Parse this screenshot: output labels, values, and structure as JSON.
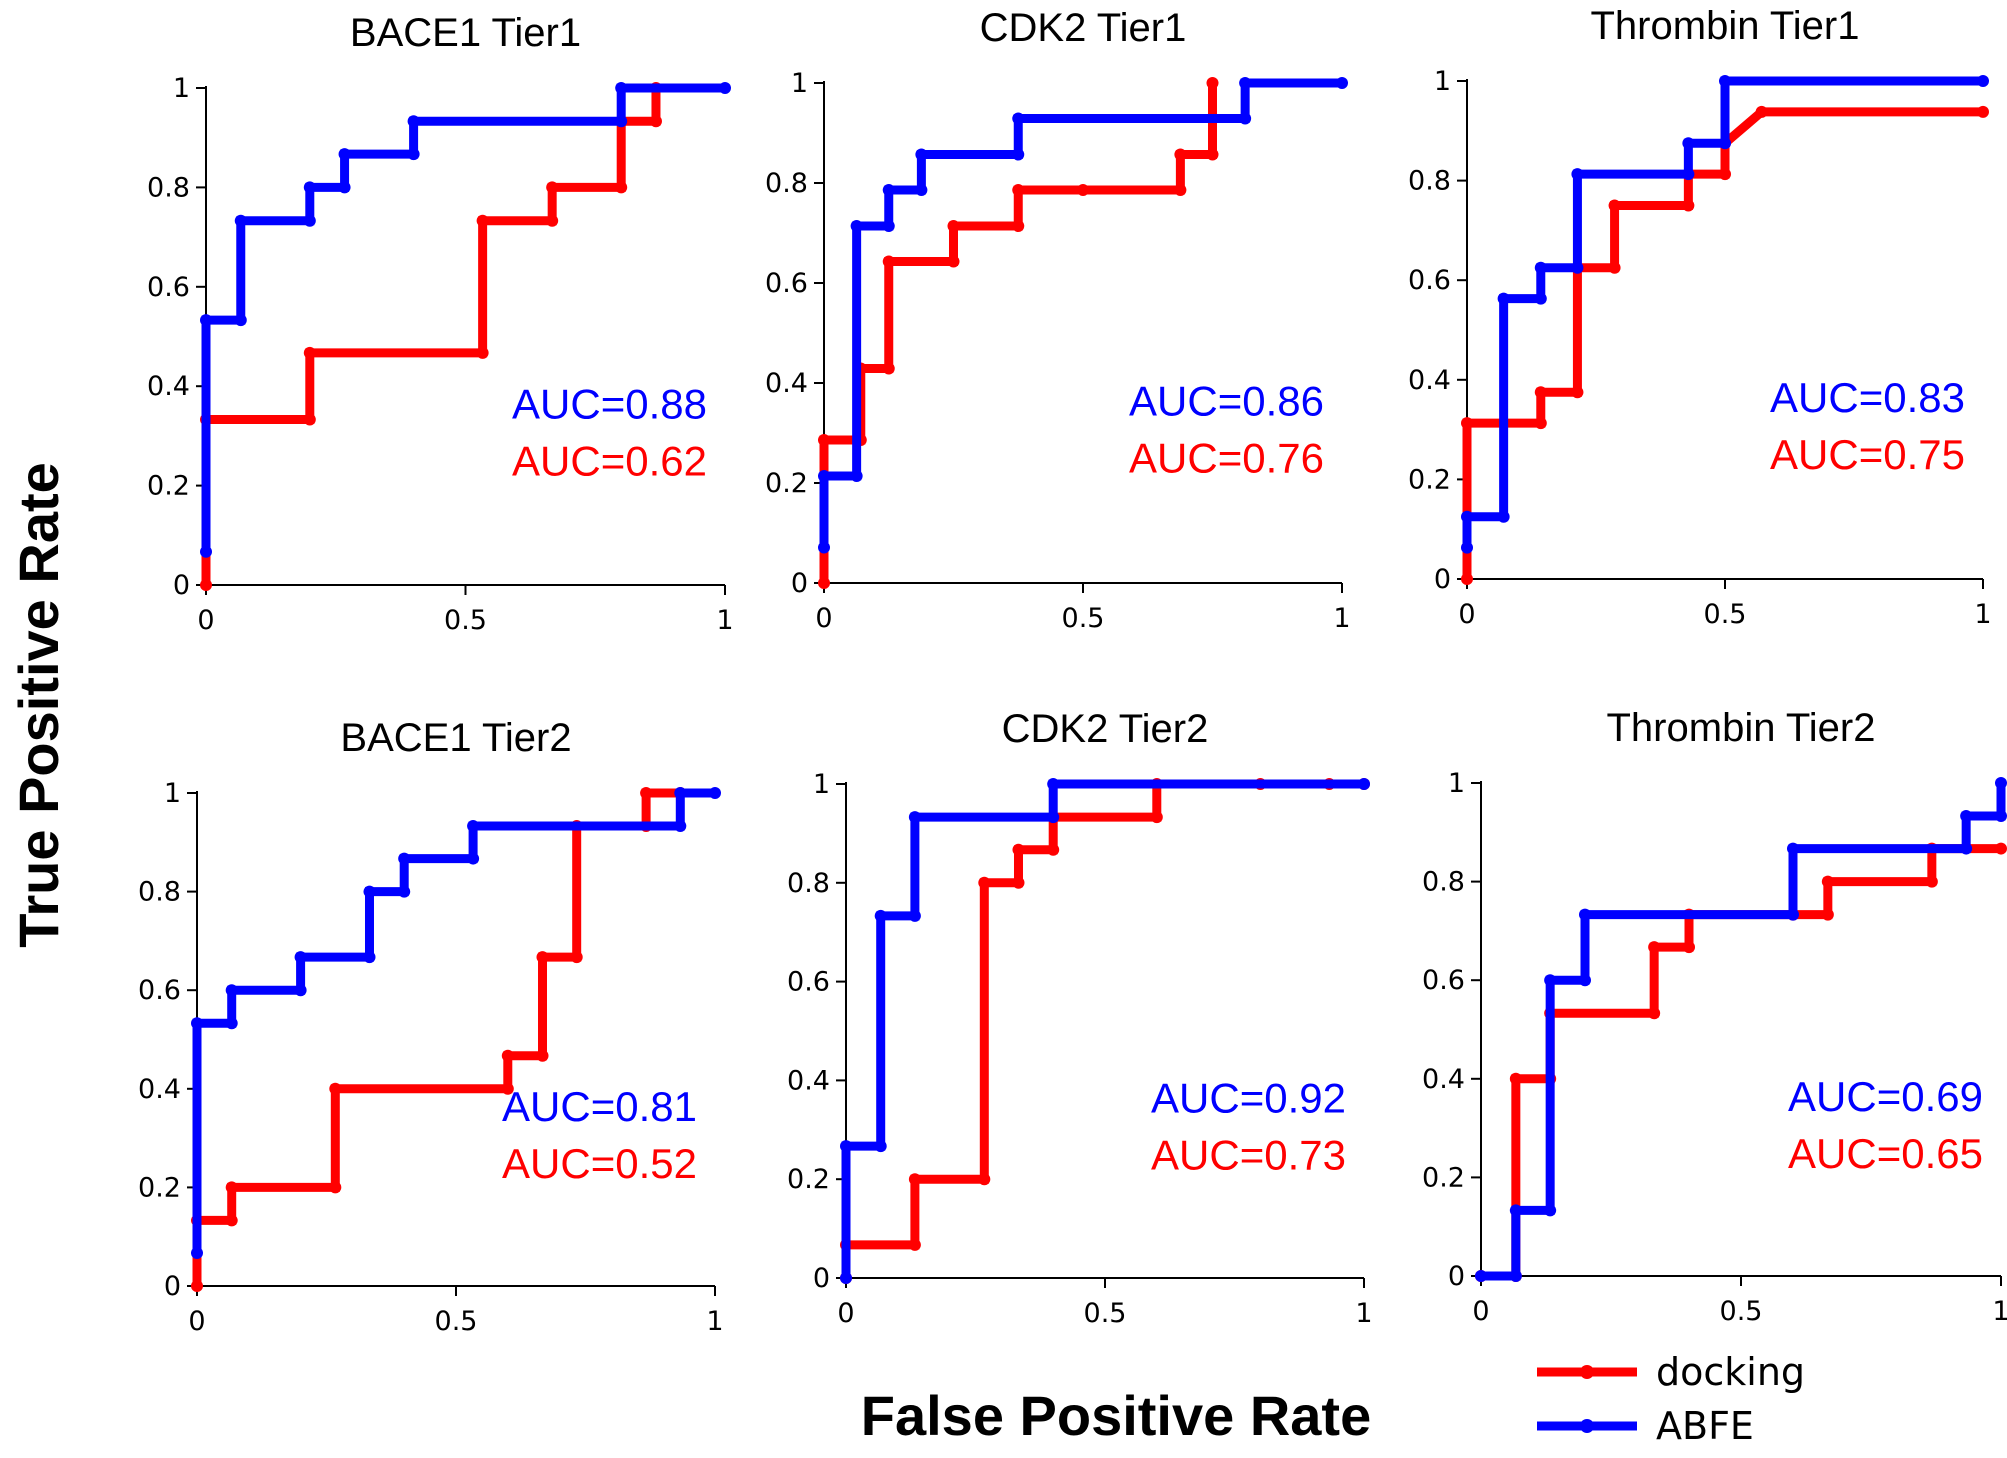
{
  "figure": {
    "ylabel": "True Positive Rate",
    "xlabel": "False Positive Rate",
    "legend": [
      {
        "name": "docking",
        "color": "#ff0000"
      },
      {
        "name": "ABFE",
        "color": "#0000ff"
      }
    ],
    "x_ticks": [
      "0",
      "0.5",
      "1"
    ],
    "y_ticks": [
      "0",
      "0.2",
      "0.4",
      "0.6",
      "0.8",
      "1"
    ]
  },
  "chart_data": [
    {
      "type": "line",
      "title": "BACE1 Tier1",
      "xlim": [
        0,
        1
      ],
      "ylim": [
        0,
        1
      ],
      "series": [
        {
          "name": "docking",
          "color": "#ff0000",
          "auc_label": "AUC=0.62",
          "x": [
            0,
            0,
            0.2,
            0.2,
            0.533,
            0.533,
            0.667,
            0.667,
            0.8,
            0.8,
            0.867,
            0.867
          ],
          "y": [
            0,
            0.333,
            0.333,
            0.467,
            0.467,
            0.733,
            0.733,
            0.8,
            0.8,
            0.933,
            0.933,
            1
          ]
        },
        {
          "name": "ABFE",
          "color": "#0000ff",
          "auc_label": "AUC=0.88",
          "x": [
            0,
            0,
            0.067,
            0.067,
            0.2,
            0.2,
            0.267,
            0.267,
            0.4,
            0.4,
            0.8,
            0.8,
            1
          ],
          "y": [
            0.067,
            0.533,
            0.533,
            0.733,
            0.733,
            0.8,
            0.8,
            0.867,
            0.867,
            0.933,
            0.933,
            1,
            1
          ]
        }
      ]
    },
    {
      "type": "line",
      "title": "CDK2 Tier1",
      "xlim": [
        0,
        1
      ],
      "ylim": [
        0,
        1
      ],
      "series": [
        {
          "name": "docking",
          "color": "#ff0000",
          "auc_label": "AUC=0.76",
          "x": [
            0,
            0,
            0.071,
            0.071,
            0.125,
            0.125,
            0.25,
            0.25,
            0.375,
            0.375,
            0.5,
            0.688,
            0.688,
            0.75,
            0.75
          ],
          "y": [
            0,
            0.286,
            0.286,
            0.429,
            0.429,
            0.643,
            0.643,
            0.714,
            0.714,
            0.786,
            0.786,
            0.786,
            0.857,
            0.857,
            1
          ]
        },
        {
          "name": "ABFE",
          "color": "#0000ff",
          "auc_label": "AUC=0.86",
          "x": [
            0,
            0,
            0.063,
            0.063,
            0.125,
            0.125,
            0.188,
            0.188,
            0.375,
            0.375,
            0.813,
            0.813,
            1
          ],
          "y": [
            0.071,
            0.214,
            0.214,
            0.714,
            0.714,
            0.786,
            0.786,
            0.857,
            0.857,
            0.929,
            0.929,
            1,
            1
          ]
        }
      ]
    },
    {
      "type": "line",
      "title": "Thrombin Tier1",
      "xlim": [
        0,
        1
      ],
      "ylim": [
        0,
        1
      ],
      "series": [
        {
          "name": "docking",
          "color": "#ff0000",
          "auc_label": "AUC=0.75",
          "x": [
            0,
            0,
            0.143,
            0.143,
            0.214,
            0.214,
            0.286,
            0.286,
            0.429,
            0.429,
            0.5,
            0.5,
            0.571,
            1
          ],
          "y": [
            0,
            0.313,
            0.313,
            0.375,
            0.375,
            0.625,
            0.625,
            0.75,
            0.75,
            0.813,
            0.813,
            0.875,
            0.938,
            0.938
          ]
        },
        {
          "name": "ABFE",
          "color": "#0000ff",
          "auc_label": "AUC=0.83",
          "x": [
            0,
            0,
            0.071,
            0.071,
            0.143,
            0.143,
            0.214,
            0.214,
            0.429,
            0.429,
            0.5,
            0.5,
            1
          ],
          "y": [
            0.063,
            0.125,
            0.125,
            0.563,
            0.563,
            0.625,
            0.625,
            0.813,
            0.813,
            0.875,
            0.875,
            1,
            1
          ]
        }
      ]
    },
    {
      "type": "line",
      "title": "BACE1 Tier2",
      "xlim": [
        0,
        1
      ],
      "ylim": [
        0,
        1
      ],
      "series": [
        {
          "name": "docking",
          "color": "#ff0000",
          "auc_label": "AUC=0.52",
          "x": [
            0,
            0,
            0.067,
            0.067,
            0.267,
            0.267,
            0.6,
            0.6,
            0.667,
            0.667,
            0.733,
            0.733,
            0.867,
            0.867,
            0.933
          ],
          "y": [
            0,
            0.133,
            0.133,
            0.2,
            0.2,
            0.4,
            0.4,
            0.467,
            0.467,
            0.667,
            0.667,
            0.933,
            0.933,
            1,
            1
          ]
        },
        {
          "name": "ABFE",
          "color": "#0000ff",
          "auc_label": "AUC=0.81",
          "x": [
            0,
            0,
            0.067,
            0.067,
            0.2,
            0.2,
            0.333,
            0.333,
            0.4,
            0.4,
            0.533,
            0.533,
            0.933,
            0.933,
            1
          ],
          "y": [
            0.067,
            0.533,
            0.533,
            0.6,
            0.6,
            0.667,
            0.667,
            0.8,
            0.8,
            0.867,
            0.867,
            0.933,
            0.933,
            1,
            1
          ]
        }
      ]
    },
    {
      "type": "line",
      "title": "CDK2 Tier2",
      "xlim": [
        0,
        1
      ],
      "ylim": [
        0,
        1
      ],
      "series": [
        {
          "name": "docking",
          "color": "#ff0000",
          "auc_label": "AUC=0.73",
          "x": [
            0,
            0,
            0.133,
            0.133,
            0.267,
            0.267,
            0.333,
            0.333,
            0.4,
            0.4,
            0.6,
            0.6,
            0.8,
            0.933,
            1
          ],
          "y": [
            0,
            0.067,
            0.067,
            0.2,
            0.2,
            0.8,
            0.8,
            0.867,
            0.867,
            0.933,
            0.933,
            1,
            1,
            1,
            1
          ]
        },
        {
          "name": "ABFE",
          "color": "#0000ff",
          "auc_label": "AUC=0.92",
          "x": [
            0,
            0,
            0.067,
            0.067,
            0.133,
            0.133,
            0.4,
            0.4,
            1
          ],
          "y": [
            0,
            0.267,
            0.267,
            0.733,
            0.733,
            0.933,
            0.933,
            1,
            1
          ]
        }
      ]
    },
    {
      "type": "line",
      "title": "Thrombin Tier2",
      "xlim": [
        0,
        1
      ],
      "ylim": [
        0,
        1
      ],
      "series": [
        {
          "name": "docking",
          "color": "#ff0000",
          "auc_label": "AUC=0.65",
          "x": [
            0,
            0.067,
            0.067,
            0.133,
            0.133,
            0.333,
            0.333,
            0.4,
            0.4,
            0.6,
            0.667,
            0.667,
            0.867,
            0.867,
            1
          ],
          "y": [
            0,
            0,
            0.4,
            0.4,
            0.533,
            0.533,
            0.667,
            0.667,
            0.733,
            0.733,
            0.733,
            0.8,
            0.8,
            0.867,
            0.867
          ]
        },
        {
          "name": "ABFE",
          "color": "#0000ff",
          "auc_label": "AUC=0.69",
          "x": [
            0,
            0.067,
            0.067,
            0.133,
            0.133,
            0.2,
            0.2,
            0.6,
            0.6,
            0.933,
            0.933,
            1,
            1
          ],
          "y": [
            0,
            0,
            0.133,
            0.133,
            0.6,
            0.6,
            0.733,
            0.733,
            0.867,
            0.867,
            0.933,
            0.933,
            1
          ]
        }
      ]
    }
  ]
}
